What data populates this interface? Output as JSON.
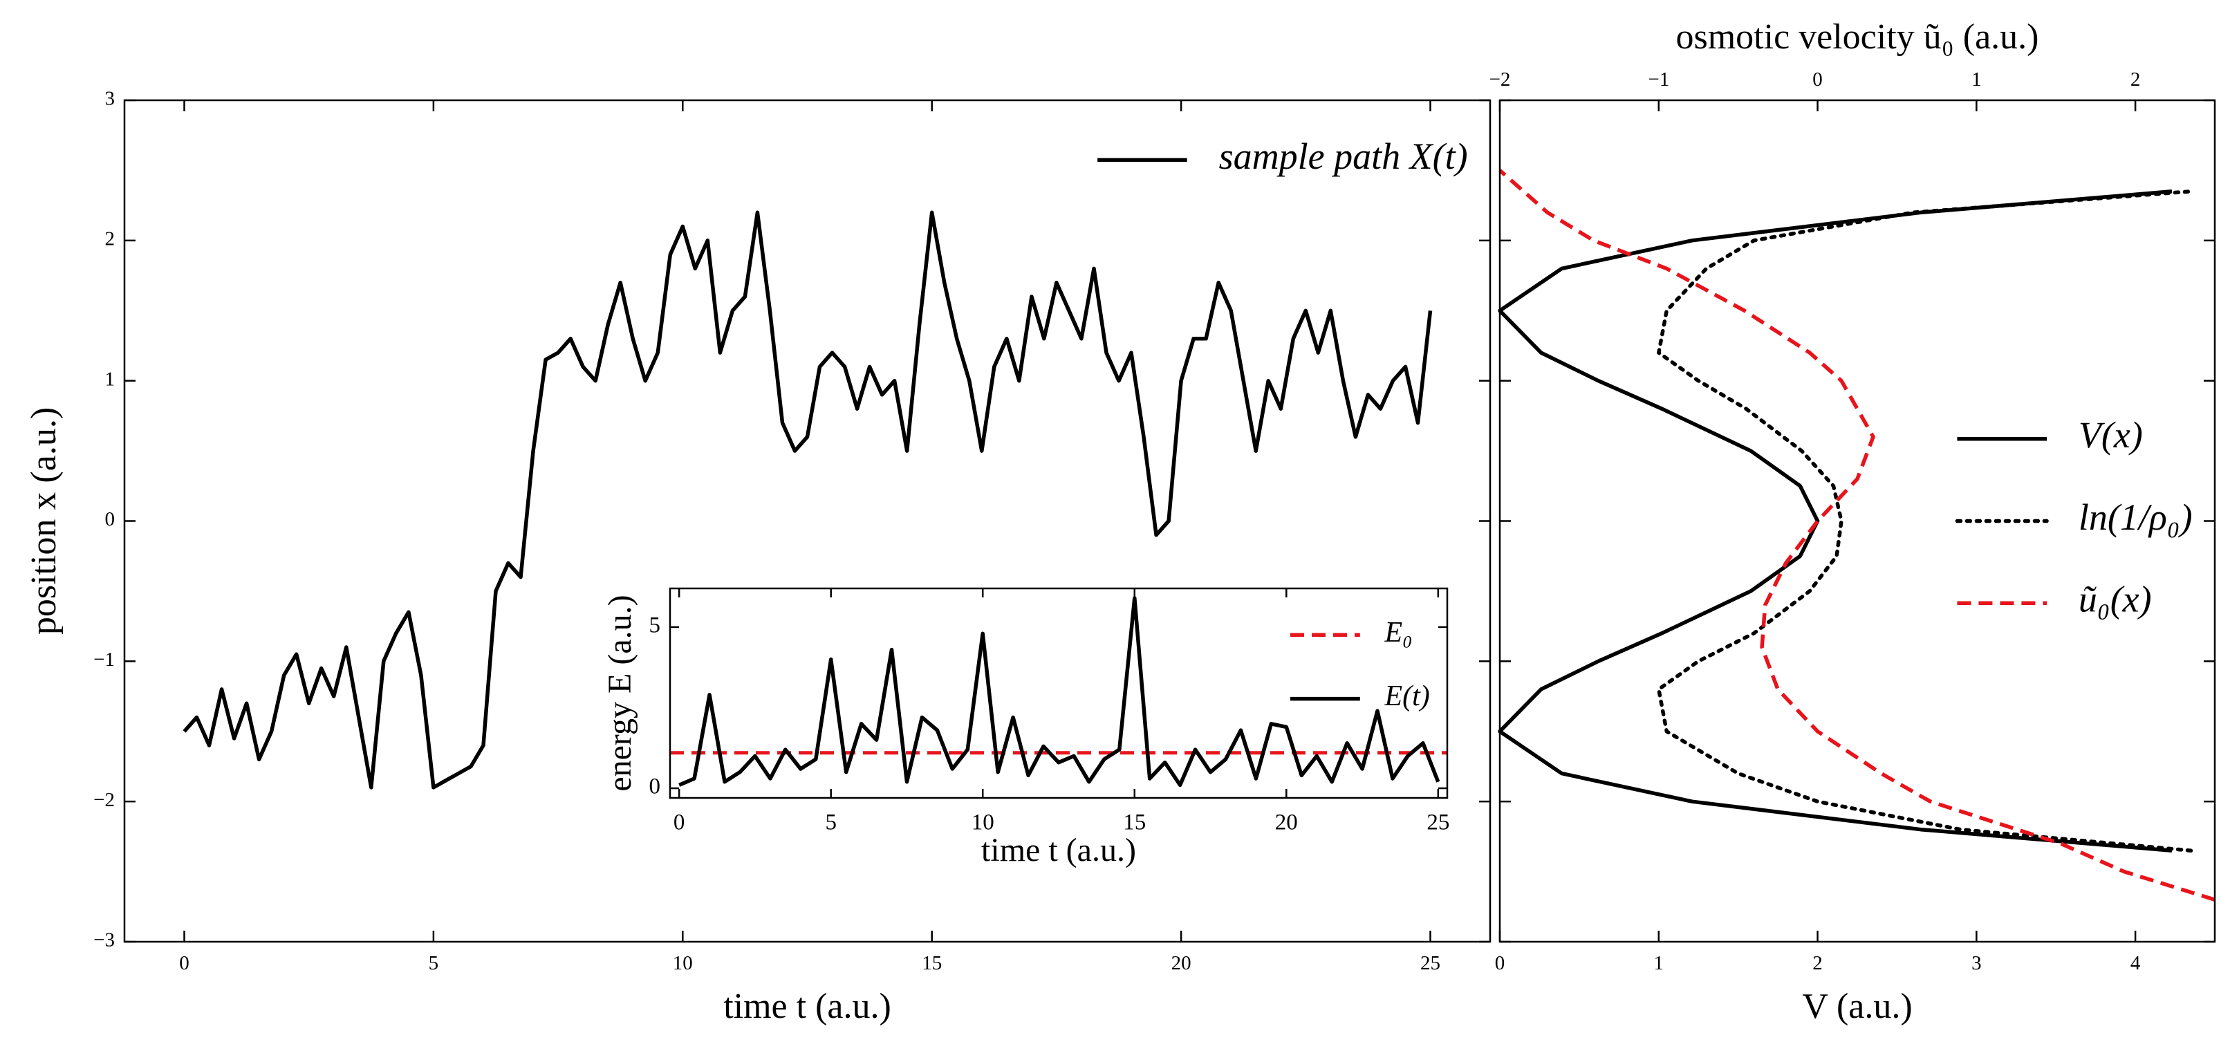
{
  "chart_data": [
    {
      "type": "line",
      "xlabel": "time t (a.u.)",
      "ylabel": "position x (a.u.)",
      "x": [
        0,
        0.25,
        0.5,
        0.75,
        1,
        1.25,
        1.5,
        1.75,
        2,
        2.25,
        2.5,
        2.75,
        3,
        3.25,
        3.5,
        3.75,
        4,
        4.25,
        4.5,
        4.75,
        5,
        5.25,
        5.5,
        5.75,
        6,
        6.25,
        6.5,
        6.75,
        7,
        7.25,
        7.5,
        7.75,
        8,
        8.25,
        8.5,
        8.75,
        9,
        9.25,
        9.5,
        9.75,
        10,
        10.25,
        10.5,
        10.75,
        11,
        11.25,
        11.5,
        11.75,
        12,
        12.25,
        12.5,
        12.75,
        13,
        13.25,
        13.5,
        13.75,
        14,
        14.25,
        14.5,
        14.75,
        15,
        15.25,
        15.5,
        15.75,
        16,
        16.25,
        16.5,
        16.75,
        17,
        17.25,
        17.5,
        17.75,
        18,
        18.25,
        18.5,
        18.75,
        19,
        19.25,
        19.5,
        19.75,
        20,
        20.25,
        20.5,
        20.75,
        21,
        21.25,
        21.5,
        21.75,
        22,
        22.25,
        22.5,
        22.75,
        23,
        23.25,
        23.5,
        23.75,
        24,
        24.25,
        24.5,
        24.75,
        25
      ],
      "series": [
        {
          "name": "sample path X(t)",
          "color": "#000000",
          "style": "solid",
          "values": [
            -1.5,
            -1.4,
            -1.6,
            -1.2,
            -1.55,
            -1.3,
            -1.7,
            -1.5,
            -1.1,
            -0.95,
            -1.3,
            -1.05,
            -1.25,
            -0.9,
            -1.4,
            -1.9,
            -1.0,
            -0.8,
            -0.65,
            -1.1,
            -1.9,
            -1.85,
            -1.8,
            -1.75,
            -1.6,
            -0.5,
            -0.3,
            -0.4,
            0.5,
            1.15,
            1.2,
            1.3,
            1.1,
            1.0,
            1.4,
            1.7,
            1.3,
            1.0,
            1.2,
            1.9,
            2.1,
            1.8,
            2.0,
            1.2,
            1.5,
            1.6,
            2.2,
            1.5,
            0.7,
            0.5,
            0.6,
            1.1,
            1.2,
            1.1,
            0.8,
            1.1,
            0.9,
            1.0,
            0.5,
            1.4,
            2.2,
            1.7,
            1.3,
            1.0,
            0.5,
            1.1,
            1.3,
            1.0,
            1.6,
            1.3,
            1.7,
            1.5,
            1.3,
            1.8,
            1.2,
            1.0,
            1.2,
            0.6,
            -0.1,
            0.0,
            1.0,
            1.3,
            1.3,
            1.7,
            1.5,
            1.0,
            0.5,
            1.0,
            0.8,
            1.3,
            1.5,
            1.2,
            1.5,
            1.0,
            0.6,
            0.9,
            0.8,
            1.0,
            1.1,
            0.7,
            1.5
          ]
        }
      ],
      "xlim": [
        -1.2,
        26.2
      ],
      "xticks": [
        0,
        5,
        10,
        15,
        20,
        25
      ],
      "ylim": [
        -3,
        3
      ],
      "yticks": [
        {
          "value": -3,
          "label": "−3"
        },
        {
          "value": -2,
          "label": "−2"
        },
        {
          "value": -1,
          "label": "−1"
        },
        0,
        1,
        2,
        3
      ],
      "legend": "upper right"
    },
    {
      "type": "line",
      "xlabel": "time t (a.u.)",
      "ylabel": "energy E (a.u.)",
      "x": [
        0,
        0.5,
        1,
        1.5,
        2,
        2.5,
        3,
        3.5,
        4,
        4.5,
        5,
        5.5,
        6,
        6.5,
        7,
        7.5,
        8,
        8.5,
        9,
        9.5,
        10,
        10.5,
        11,
        11.5,
        12,
        12.5,
        13,
        13.5,
        14,
        14.5,
        15,
        15.5,
        16,
        16.5,
        17,
        17.5,
        18,
        18.5,
        19,
        19.5,
        20,
        20.5,
        21,
        21.5,
        22,
        22.5,
        23,
        23.5,
        24,
        24.5,
        25
      ],
      "reference_lines": [
        {
          "name": "E₀",
          "color": "#e8141c",
          "style": "dashed",
          "value": 1.1
        }
      ],
      "series": [
        {
          "name": "E(t)",
          "color": "#000000",
          "style": "solid",
          "values": [
            0.1,
            0.3,
            2.9,
            0.2,
            0.5,
            1.0,
            0.3,
            1.2,
            0.6,
            0.9,
            4.0,
            0.5,
            2.0,
            1.5,
            4.3,
            0.2,
            2.2,
            1.8,
            0.6,
            1.2,
            4.8,
            0.5,
            2.2,
            0.4,
            1.3,
            0.8,
            1.0,
            0.2,
            0.9,
            1.2,
            5.9,
            0.3,
            0.8,
            0.1,
            1.2,
            0.5,
            0.9,
            1.8,
            0.3,
            2.0,
            1.9,
            0.4,
            1.0,
            0.2,
            1.4,
            0.6,
            2.4,
            0.3,
            1.0,
            1.4,
            0.2
          ]
        }
      ],
      "xlim": [
        -0.3,
        25.3
      ],
      "xticks": [
        0,
        5,
        10,
        15,
        20,
        25
      ],
      "ylim": [
        -0.3,
        6.2
      ],
      "yticks": [
        0,
        5
      ],
      "legend": "upper right"
    },
    {
      "type": "line",
      "orientation": "horizontal",
      "xlabel": "V (a.u.)",
      "x2label": "osmotic velocity ũ₀ (a.u.)",
      "series": [
        {
          "name": "V(x)",
          "color": "#000000",
          "style": "solid",
          "axis": "x",
          "y": [
            -2.35,
            -2.2,
            -2.0,
            -1.8,
            -1.5,
            -1.2,
            -1.0,
            -0.8,
            -0.5,
            -0.25,
            0,
            0.25,
            0.5,
            0.8,
            1.0,
            1.2,
            1.5,
            1.8,
            2.0,
            2.2,
            2.35
          ],
          "values": [
            4.23,
            2.65,
            1.21,
            0.39,
            0,
            0.26,
            0.62,
            1.02,
            1.58,
            1.89,
            2.0,
            1.89,
            1.58,
            1.02,
            0.62,
            0.26,
            0,
            0.39,
            1.21,
            2.65,
            4.23
          ]
        },
        {
          "name": "ln(1/ρ₀)",
          "color": "#000000",
          "style": "dotted",
          "axis": "x",
          "y": [
            -2.35,
            -2.2,
            -2.0,
            -1.8,
            -1.5,
            -1.2,
            -1.0,
            -0.8,
            -0.5,
            -0.25,
            0,
            0.25,
            0.5,
            0.8,
            1.0,
            1.2,
            1.5,
            1.8,
            2.0,
            2.2,
            2.35
          ],
          "values": [
            4.35,
            2.9,
            2.0,
            1.5,
            1.05,
            1.0,
            1.25,
            1.6,
            1.95,
            2.12,
            2.15,
            2.1,
            1.9,
            1.55,
            1.25,
            1.0,
            1.05,
            1.3,
            1.6,
            2.6,
            4.35
          ]
        },
        {
          "name": "ũ₀(x)",
          "color": "#e8141c",
          "style": "dashed",
          "axis": "x2",
          "y": [
            -2.7,
            -2.5,
            -2.3,
            -2.0,
            -1.8,
            -1.5,
            -1.2,
            -0.9,
            -0.6,
            -0.3,
            0,
            0.3,
            0.6,
            1.0,
            1.2,
            1.5,
            1.8,
            2.0,
            2.2,
            2.5
          ],
          "values": [
            2.5,
            1.93,
            1.53,
            0.71,
            0.4,
            0.0,
            -0.25,
            -0.35,
            -0.33,
            -0.2,
            0.0,
            0.25,
            0.35,
            0.15,
            -0.05,
            -0.46,
            -0.95,
            -1.41,
            -1.7,
            -2.0
          ]
        }
      ],
      "xlim": [
        0,
        4.5
      ],
      "xticks": [
        0,
        1,
        2,
        3,
        4
      ],
      "x2lim": [
        -2,
        2.5
      ],
      "x2ticks": [
        {
          "value": -2,
          "label": "−2"
        },
        {
          "value": -1,
          "label": "−1"
        },
        0,
        1,
        2
      ],
      "ylim": [
        -3,
        3
      ],
      "yticks": [
        -3,
        -2,
        -1,
        0,
        1,
        2,
        3
      ],
      "ytick_labels": false,
      "legend": "center right"
    }
  ]
}
